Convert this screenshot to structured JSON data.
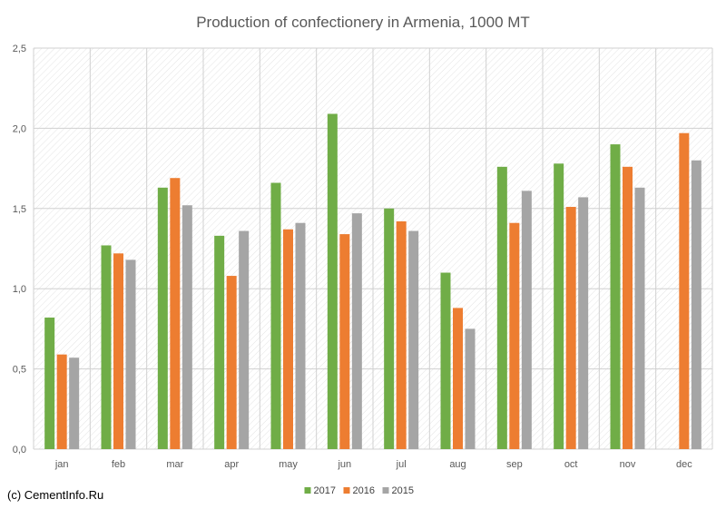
{
  "chart_data": {
    "type": "bar",
    "title": "Production of confectionery in Armenia, 1000 MT",
    "xlabel": "",
    "ylabel": "",
    "ylim": [
      0,
      2.5
    ],
    "yticks": [
      "0,0",
      "0,5",
      "1,0",
      "1,5",
      "2,0",
      "2,5"
    ],
    "categories": [
      "jan",
      "feb",
      "mar",
      "apr",
      "may",
      "jun",
      "jul",
      "aug",
      "sep",
      "oct",
      "nov",
      "dec"
    ],
    "series": [
      {
        "name": "2017",
        "color": "#70ad47",
        "values": [
          0.82,
          1.27,
          1.63,
          1.33,
          1.66,
          2.09,
          1.5,
          1.1,
          1.76,
          1.78,
          1.9,
          null
        ]
      },
      {
        "name": "2016",
        "color": "#ed7d31",
        "values": [
          0.59,
          1.22,
          1.69,
          1.08,
          1.37,
          1.34,
          1.42,
          0.88,
          1.41,
          1.51,
          1.76,
          1.97
        ]
      },
      {
        "name": "2015",
        "color": "#a5a5a5",
        "values": [
          0.57,
          1.18,
          1.52,
          1.36,
          1.41,
          1.47,
          1.36,
          0.75,
          1.61,
          1.57,
          1.63,
          1.8
        ]
      }
    ],
    "legend_position": "bottom",
    "grid": true
  },
  "source_note": "(c) CementInfo.Ru"
}
